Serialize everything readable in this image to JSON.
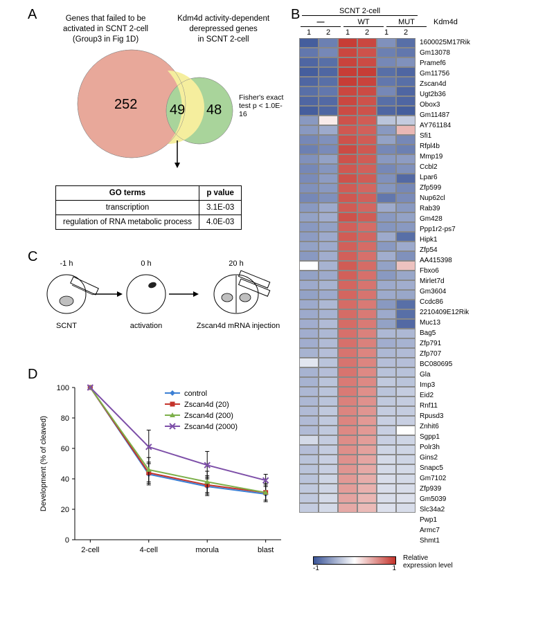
{
  "panelA": {
    "label": "A",
    "venn": {
      "leftTitle": "Genes that failed to be\nactivated in SCNT 2-cell\n(Group3 in Fig 1D)",
      "rightTitle": "Kdm4d activity-dependent\nderepressed genes\nin SCNT 2-cell",
      "leftCount": "252",
      "overlapCount": "49",
      "rightCount": "48",
      "fisherText": "Fisher's exact\ntest p < 1.0E-16",
      "leftColor": "#e8a89a",
      "overlapColor": "#f5ee9e",
      "rightColor": "#a9d49b"
    },
    "goTable": {
      "headers": [
        "GO terms",
        "p value"
      ],
      "rows": [
        [
          "transcription",
          "3.1E-03"
        ],
        [
          "regulation of RNA metabolic process",
          "4.0E-03"
        ]
      ]
    }
  },
  "panelB": {
    "label": "B",
    "topTitle": "SCNT 2-cell",
    "conditions": [
      "—",
      "WT",
      "MUT"
    ],
    "condLabel": "Kdm4d",
    "repLabels": [
      "1",
      "2",
      "1",
      "2",
      "1",
      "2"
    ],
    "genes": [
      "1600025M17Rik",
      "Gm13078",
      "Pramef6",
      "Gm11756",
      "Zscan4d",
      "Ugt2b36",
      "Obox3",
      "Gm11487",
      "AY761184",
      "Sfi1",
      "Rfpl4b",
      "Mmp19",
      "Ccbl2",
      "Lpar6",
      "Zfp599",
      "Nup62cl",
      "Rab39",
      "Gm428",
      "Ppp1r2-ps7",
      "Hipk1",
      "Zfp54",
      "AA415398",
      "Fbxo6",
      "Mirlet7d",
      "Gm3604",
      "Ccdc86",
      "2210409E12Rik",
      "Muc13",
      "Bag5",
      "Zfp791",
      "Zfp707",
      "BC080695",
      "Gla",
      "Imp3",
      "Eid2",
      "Rnf11",
      "Rpusd3",
      "Znhit6",
      "Sgpp1",
      "Polr3h",
      "Gins2",
      "Snapc5",
      "Gm7102",
      "Zfp939",
      "Gm5039",
      "Slc34a2",
      "Pwp1",
      "Armc7",
      "Shmt1"
    ],
    "colorbarLabel": "Relative\nexpression level",
    "colorbarMin": "-1",
    "colorbarMax": "1",
    "colorLow": "#3b5598",
    "colorMid": "#ffffff",
    "colorHigh": "#c4332b",
    "data": [
      [
        -0.95,
        -0.75,
        0.95,
        0.9,
        -0.65,
        -0.85
      ],
      [
        -0.8,
        -0.7,
        0.9,
        0.85,
        -0.75,
        -0.8
      ],
      [
        -0.9,
        -0.85,
        0.92,
        0.88,
        -0.7,
        -0.65
      ],
      [
        -0.95,
        -0.9,
        0.95,
        0.95,
        -0.85,
        -0.9
      ],
      [
        -0.9,
        -0.85,
        0.95,
        0.92,
        -0.8,
        -0.85
      ],
      [
        -0.85,
        -0.8,
        0.9,
        0.88,
        -0.7,
        -0.9
      ],
      [
        -0.9,
        -0.88,
        0.9,
        0.85,
        -0.85,
        -0.9
      ],
      [
        -0.95,
        -0.9,
        0.88,
        0.85,
        -0.9,
        -0.95
      ],
      [
        -0.6,
        0.1,
        0.85,
        0.8,
        -0.35,
        -0.3
      ],
      [
        -0.6,
        -0.5,
        0.82,
        0.78,
        -0.6,
        0.35
      ],
      [
        -0.7,
        -0.65,
        0.85,
        0.8,
        -0.55,
        -0.7
      ],
      [
        -0.75,
        -0.68,
        0.88,
        0.82,
        -0.7,
        -0.75
      ],
      [
        -0.65,
        -0.55,
        0.85,
        0.8,
        -0.6,
        -0.58
      ],
      [
        -0.7,
        -0.62,
        0.82,
        0.78,
        -0.7,
        -0.65
      ],
      [
        -0.68,
        -0.58,
        0.85,
        0.8,
        -0.65,
        -0.88
      ],
      [
        -0.65,
        -0.6,
        0.8,
        0.75,
        -0.62,
        -0.7
      ],
      [
        -0.7,
        -0.65,
        0.82,
        0.78,
        -0.8,
        -0.68
      ],
      [
        -0.6,
        -0.5,
        0.8,
        0.75,
        -0.5,
        -0.6
      ],
      [
        -0.55,
        -0.48,
        0.85,
        0.8,
        -0.6,
        -0.55
      ],
      [
        -0.6,
        -0.55,
        0.78,
        0.72,
        -0.62,
        -0.6
      ],
      [
        -0.58,
        -0.5,
        0.8,
        0.75,
        -0.5,
        -0.85
      ],
      [
        -0.55,
        -0.5,
        0.78,
        0.72,
        -0.6,
        -0.5
      ],
      [
        -0.6,
        -0.48,
        0.78,
        0.7,
        -0.48,
        -0.65
      ],
      [
        0.0,
        -0.45,
        0.8,
        0.72,
        -0.55,
        0.3
      ],
      [
        -0.55,
        -0.5,
        0.78,
        0.7,
        -0.6,
        -0.52
      ],
      [
        -0.5,
        -0.45,
        0.75,
        0.68,
        -0.5,
        -0.48
      ],
      [
        -0.55,
        -0.5,
        0.75,
        0.68,
        -0.5,
        -0.52
      ],
      [
        -0.5,
        -0.42,
        0.72,
        0.65,
        -0.6,
        -0.85
      ],
      [
        -0.5,
        -0.45,
        0.72,
        0.65,
        -0.5,
        -0.85
      ],
      [
        -0.48,
        -0.4,
        0.72,
        0.65,
        -0.55,
        -0.88
      ],
      [
        -0.48,
        -0.42,
        0.7,
        0.62,
        -0.42,
        -0.42
      ],
      [
        -0.48,
        -0.4,
        0.7,
        0.62,
        -0.48,
        -0.45
      ],
      [
        -0.45,
        -0.38,
        0.68,
        0.6,
        -0.42,
        -0.4
      ],
      [
        -0.15,
        -0.35,
        0.68,
        0.6,
        -0.38,
        -0.38
      ],
      [
        -0.45,
        -0.38,
        0.68,
        0.58,
        -0.36,
        -0.36
      ],
      [
        -0.45,
        -0.35,
        0.65,
        0.58,
        -0.32,
        -0.35
      ],
      [
        -0.42,
        -0.35,
        0.65,
        0.55,
        -0.35,
        -0.3
      ],
      [
        -0.42,
        -0.35,
        0.62,
        0.54,
        -0.32,
        -0.3
      ],
      [
        -0.4,
        -0.32,
        0.6,
        0.52,
        -0.3,
        -0.3
      ],
      [
        -0.4,
        -0.32,
        0.6,
        0.5,
        -0.28,
        -0.28
      ],
      [
        -0.4,
        -0.32,
        0.58,
        0.5,
        -0.28,
        0.0
      ],
      [
        -0.22,
        -0.3,
        0.56,
        0.48,
        -0.28,
        -0.25
      ],
      [
        -0.38,
        -0.3,
        0.55,
        0.46,
        -0.25,
        -0.25
      ],
      [
        -0.35,
        -0.28,
        0.54,
        0.44,
        -0.22,
        -0.25
      ],
      [
        -0.35,
        -0.28,
        0.52,
        0.42,
        -0.22,
        -0.22
      ],
      [
        -0.35,
        -0.25,
        0.5,
        0.4,
        -0.2,
        -0.22
      ],
      [
        -0.32,
        -0.25,
        0.48,
        0.38,
        -0.2,
        -0.2
      ],
      [
        -0.32,
        -0.22,
        0.45,
        0.36,
        -0.2,
        -0.18
      ],
      [
        -0.3,
        -0.22,
        0.42,
        0.34,
        -0.18,
        -0.2
      ]
    ]
  },
  "panelC": {
    "label": "C",
    "stages": [
      {
        "time": "-1 h",
        "label": "SCNT"
      },
      {
        "time": "0 h",
        "label": "activation"
      },
      {
        "time": "20 h",
        "label": "Zscan4d mRNA injection"
      }
    ]
  },
  "panelD": {
    "label": "D",
    "chart": {
      "type": "line",
      "ylabel": "Development (% of cleaved)",
      "categories": [
        "2-cell",
        "4-cell",
        "morula",
        "blast"
      ],
      "series": [
        {
          "name": "control",
          "color": "#3b7fd4",
          "marker": "diamond",
          "values": [
            100,
            43,
            35,
            30
          ],
          "errors": [
            0,
            7,
            6,
            5
          ]
        },
        {
          "name": "Zscan4d (20)",
          "color": "#c4332b",
          "marker": "square",
          "values": [
            100,
            44,
            36,
            31
          ],
          "errors": [
            0,
            7,
            6,
            5
          ]
        },
        {
          "name": "Zscan4d (200)",
          "color": "#7db04a",
          "marker": "triangle",
          "values": [
            100,
            46,
            38,
            31
          ],
          "errors": [
            0,
            8,
            7,
            6
          ]
        },
        {
          "name": "Zscan4d (2000)",
          "color": "#7d4fa8",
          "marker": "x",
          "values": [
            100,
            61,
            49,
            39
          ],
          "errors": [
            0,
            11,
            9,
            4
          ]
        }
      ],
      "ylim": [
        0,
        100
      ],
      "yticks": [
        0,
        20,
        40,
        60,
        80,
        100
      ]
    }
  }
}
